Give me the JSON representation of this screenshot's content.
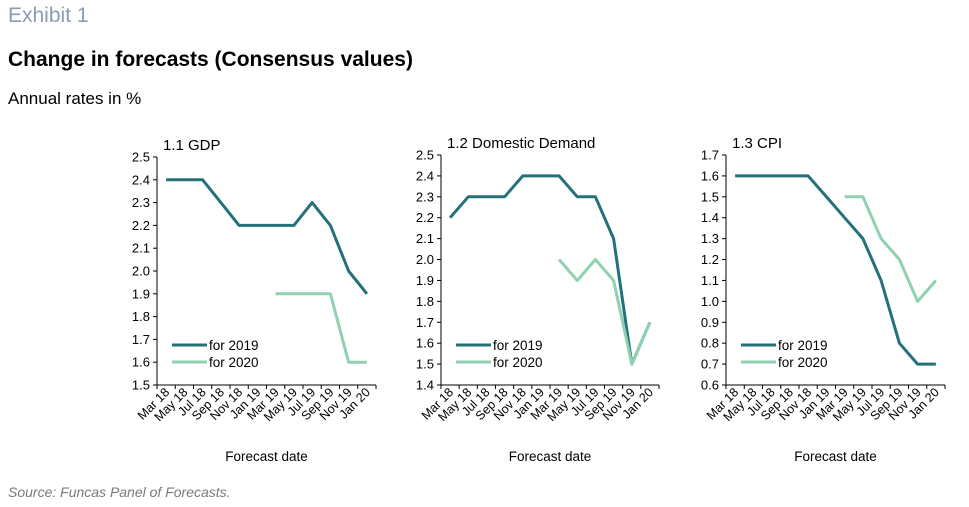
{
  "header": {
    "exhibit": "Exhibit 1",
    "title": "Change in forecasts (Consensus values)",
    "subtitle": "Annual rates in %"
  },
  "footer": {
    "source": "Source: Funcas Panel of Forecasts."
  },
  "colors": {
    "for_2019": "#24717a",
    "for_2020": "#8fd1b1",
    "axis": "#000000"
  },
  "chart_data": [
    {
      "type": "line",
      "title": "1.1 GDP",
      "xlabel": "Forecast date",
      "ylabel": "",
      "categories": [
        "Mar 18",
        "May 18",
        "Jul 18",
        "Sep 18",
        "Nov 18",
        "Jan 19",
        "Mar 19",
        "May 19",
        "Jul 19",
        "Sep 19",
        "Nov 19",
        "Jan 20"
      ],
      "ylim": [
        1.5,
        2.5
      ],
      "yticks": [
        "2.5",
        "2.4",
        "2.3",
        "2.2",
        "2.1",
        "2.0",
        "1.9",
        "1.8",
        "1.7",
        "1.6",
        "1.5"
      ],
      "legend_position": "bottom-left",
      "series": [
        {
          "name": "for 2019",
          "values": [
            2.4,
            2.4,
            2.4,
            2.3,
            2.2,
            2.2,
            2.2,
            2.2,
            2.3,
            2.2,
            2.0,
            1.9
          ]
        },
        {
          "name": "for 2020",
          "values": [
            null,
            null,
            null,
            null,
            null,
            null,
            1.9,
            1.9,
            1.9,
            1.9,
            1.6,
            1.6
          ]
        }
      ]
    },
    {
      "type": "line",
      "title": "1.2 Domestic Demand",
      "xlabel": "Forecast date",
      "ylabel": "",
      "categories": [
        "Mar 18",
        "May 18",
        "Jul 18",
        "Sep 18",
        "Nov 18",
        "Jan 19",
        "Mar 19",
        "May 19",
        "Jul 19",
        "Sep 19",
        "Nov 19",
        "Jan 20"
      ],
      "ylim": [
        1.4,
        2.5
      ],
      "yticks": [
        "2.5",
        "2.4",
        "2.3",
        "2.2",
        "2.1",
        "2.0",
        "1.9",
        "1.8",
        "1.7",
        "1.6",
        "1.5",
        "1.4"
      ],
      "legend_position": "bottom-left",
      "series": [
        {
          "name": "for 2019",
          "values": [
            2.2,
            2.3,
            2.3,
            2.3,
            2.4,
            2.4,
            2.4,
            2.3,
            2.3,
            2.1,
            1.5,
            1.7
          ]
        },
        {
          "name": "for 2020",
          "values": [
            null,
            null,
            null,
            null,
            null,
            null,
            2.0,
            1.9,
            2.0,
            1.9,
            1.5,
            1.7
          ]
        }
      ]
    },
    {
      "type": "line",
      "title": "1.3 CPI",
      "xlabel": "Forecast date",
      "ylabel": "",
      "categories": [
        "Mar 18",
        "May 18",
        "Jul 18",
        "Sep 18",
        "Nov 18",
        "Jan 19",
        "Mar 19",
        "May 19",
        "Jul 19",
        "Sep 19",
        "Nov 19",
        "Jan 20"
      ],
      "ylim": [
        0.6,
        1.7
      ],
      "yticks": [
        "1.7",
        "1.6",
        "1.5",
        "1.4",
        "1.3",
        "1.2",
        "1.1",
        "1.0",
        "0.9",
        "0.8",
        "0.7",
        "0.6"
      ],
      "legend_position": "bottom-left",
      "series": [
        {
          "name": "for 2019",
          "values": [
            1.6,
            1.6,
            1.6,
            1.6,
            1.6,
            1.5,
            1.4,
            1.3,
            1.1,
            0.8,
            0.7,
            0.7
          ]
        },
        {
          "name": "for 2020",
          "values": [
            null,
            null,
            null,
            null,
            null,
            null,
            1.5,
            1.5,
            1.3,
            1.2,
            1.0,
            1.1
          ]
        }
      ]
    }
  ]
}
